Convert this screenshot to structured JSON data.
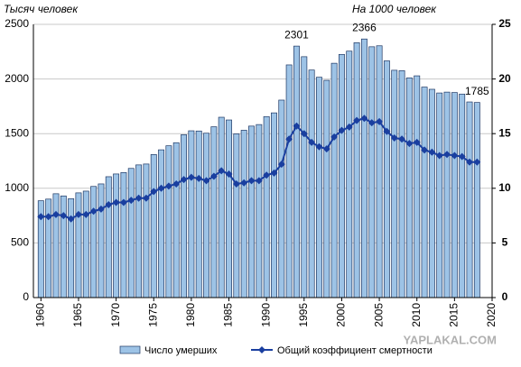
{
  "chart_data": {
    "type": "bar-line",
    "y_label": "Тысяч человек",
    "y2_label": "На 1000 человек",
    "x": [
      1960,
      1961,
      1962,
      1963,
      1964,
      1965,
      1966,
      1967,
      1968,
      1969,
      1970,
      1971,
      1972,
      1973,
      1974,
      1975,
      1976,
      1977,
      1978,
      1979,
      1980,
      1981,
      1982,
      1983,
      1984,
      1985,
      1986,
      1987,
      1988,
      1989,
      1990,
      1991,
      1992,
      1993,
      1994,
      1995,
      1996,
      1997,
      1998,
      1999,
      2000,
      2001,
      2002,
      2003,
      2004,
      2005,
      2006,
      2007,
      2008,
      2009,
      2010,
      2011,
      2012,
      2013,
      2014,
      2015,
      2016,
      2017,
      2018
    ],
    "series": [
      {
        "name": "Число умерших",
        "color": "#9dc3e6",
        "values": [
          886,
          901,
          950,
          930,
          905,
          958,
          974,
          1017,
          1040,
          1106,
          1131,
          1144,
          1182,
          1214,
          1222,
          1309,
          1352,
          1389,
          1417,
          1490,
          1526,
          1524,
          1504,
          1563,
          1650,
          1625,
          1498,
          1531,
          1569,
          1583,
          1656,
          1690,
          1807,
          2129,
          2301,
          2204,
          2082,
          2016,
          1988,
          2144,
          2225,
          2255,
          2332,
          2366,
          2295,
          2304,
          2166,
          2080,
          2076,
          2010,
          2029,
          1926,
          1906,
          1872,
          1880,
          1876,
          1862,
          1790,
          1785
        ]
      },
      {
        "name": "Общий коэффициент смертности",
        "color": "#1a3fa0",
        "axis": "y2",
        "values": [
          7.4,
          7.4,
          7.6,
          7.5,
          7.2,
          7.6,
          7.6,
          7.9,
          8.1,
          8.5,
          8.7,
          8.7,
          8.9,
          9.1,
          9.1,
          9.7,
          10.0,
          10.2,
          10.4,
          10.8,
          11.0,
          10.9,
          10.7,
          11.1,
          11.6,
          11.3,
          10.4,
          10.5,
          10.7,
          10.7,
          11.2,
          11.4,
          12.2,
          14.5,
          15.7,
          15.0,
          14.2,
          13.8,
          13.6,
          14.7,
          15.3,
          15.6,
          16.2,
          16.4,
          16.0,
          16.1,
          15.2,
          14.6,
          14.5,
          14.1,
          14.2,
          13.5,
          13.3,
          13.0,
          13.1,
          13.0,
          12.9,
          12.4,
          12.4
        ]
      }
    ],
    "annotations": [
      {
        "text": "2301",
        "x": 1994
      },
      {
        "text": "2366",
        "x": 2003
      },
      {
        "text": "1785",
        "x": 2018
      }
    ],
    "xlim": [
      1959,
      2020
    ],
    "xticks": [
      1960,
      1965,
      1970,
      1975,
      1980,
      1985,
      1990,
      1995,
      2000,
      2005,
      2010,
      2015,
      2020
    ],
    "ylim": [
      0,
      2500
    ],
    "yticks": [
      0,
      500,
      1000,
      1500,
      2000,
      2500
    ],
    "y2lim": [
      0,
      25
    ],
    "y2ticks": [
      0,
      5,
      10,
      15,
      20,
      25
    ],
    "grid": true,
    "watermark": "YAPLAKAL.COM"
  }
}
